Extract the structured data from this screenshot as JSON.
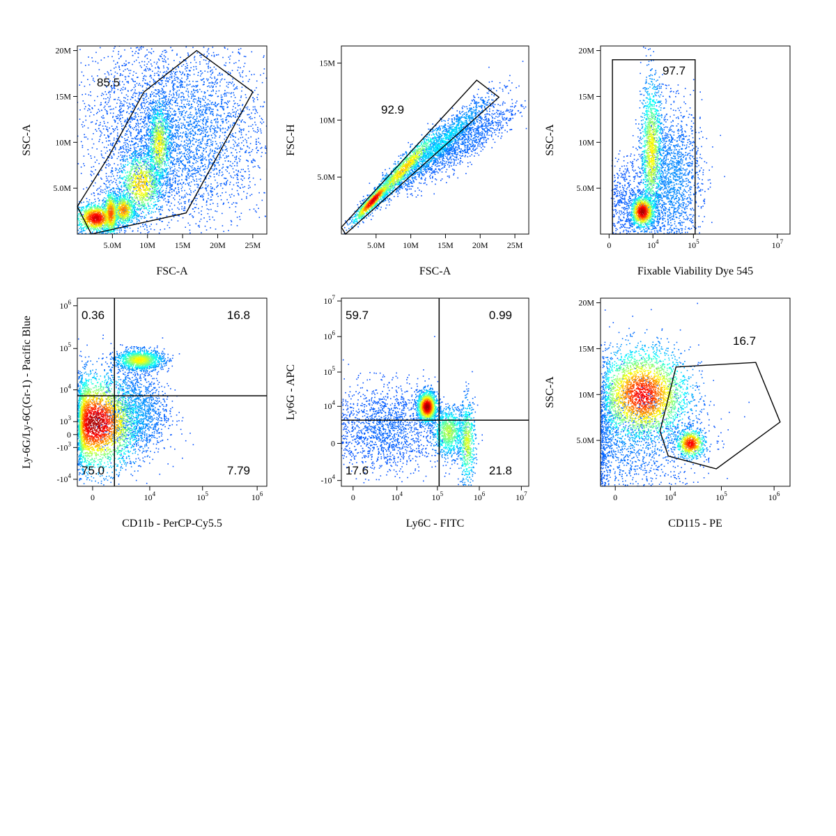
{
  "chart_data": [
    {
      "type": "scatter",
      "title": "",
      "xlabel": "FSC-A",
      "ylabel": "SSC-A",
      "x_scale": "linear",
      "y_scale": "linear",
      "xlim": [
        0,
        27000000
      ],
      "ylim": [
        0,
        20500000
      ],
      "xticks": [
        {
          "v": 5000000,
          "label": "5.0M"
        },
        {
          "v": 10000000,
          "label": "10M"
        },
        {
          "v": 15000000,
          "label": "15M"
        },
        {
          "v": 20000000,
          "label": "20M"
        },
        {
          "v": 25000000,
          "label": "25M"
        }
      ],
      "yticks": [
        {
          "v": 5000000,
          "label": "5.0M"
        },
        {
          "v": 10000000,
          "label": "10M"
        },
        {
          "v": 15000000,
          "label": "15M"
        },
        {
          "v": 20000000,
          "label": "20M"
        }
      ],
      "gates": [
        {
          "shape": "polygon",
          "label": "85.5",
          "points": [
            [
              0,
              3000000
            ],
            [
              4500000,
              8500000
            ],
            [
              9500000,
              15500000
            ],
            [
              17000000,
              20000000
            ],
            [
              25000000,
              15500000
            ],
            [
              15500000,
              2300000
            ],
            [
              2000000,
              0
            ]
          ]
        }
      ],
      "populations": [
        {
          "x": 2600000,
          "y": 1800000,
          "sx": 1500000,
          "sy": 800000,
          "n": 1100,
          "level": 0.9
        },
        {
          "x": 4700000,
          "y": 2300000,
          "sx": 600000,
          "sy": 1300000,
          "n": 700,
          "level": 0.75
        },
        {
          "x": 6500000,
          "y": 2700000,
          "sx": 900000,
          "sy": 900000,
          "n": 600,
          "level": 0.7
        },
        {
          "x": 9000000,
          "y": 5500000,
          "sx": 1700000,
          "sy": 2000000,
          "n": 1000,
          "level": 0.6
        },
        {
          "x": 11600000,
          "y": 9800000,
          "sx": 900000,
          "sy": 2400000,
          "n": 900,
          "level": 0.55
        },
        {
          "x": 15000000,
          "y": 11000000,
          "sx": 6000000,
          "sy": 5000000,
          "n": 3500,
          "level": 0.05
        },
        {
          "x": 8000000,
          "y": 12000000,
          "sx": 4000000,
          "sy": 5000000,
          "n": 700,
          "level": 0.02
        }
      ]
    },
    {
      "type": "scatter",
      "title": "",
      "xlabel": "FSC-A",
      "ylabel": "FSC-H",
      "x_scale": "linear",
      "y_scale": "linear",
      "xlim": [
        0,
        27000000
      ],
      "ylim": [
        0,
        16500000
      ],
      "xticks": [
        {
          "v": 5000000,
          "label": "5.0M"
        },
        {
          "v": 10000000,
          "label": "10M"
        },
        {
          "v": 15000000,
          "label": "15M"
        },
        {
          "v": 20000000,
          "label": "20M"
        },
        {
          "v": 25000000,
          "label": "25M"
        }
      ],
      "yticks": [
        {
          "v": 5000000,
          "label": "5.0M"
        },
        {
          "v": 10000000,
          "label": "10M"
        },
        {
          "v": 15000000,
          "label": "15M"
        }
      ],
      "gates": [
        {
          "shape": "polygon",
          "label": "92.9",
          "points": [
            [
              0,
              600000
            ],
            [
              19500000,
              13500000
            ],
            [
              22700000,
              12000000
            ],
            [
              600000,
              0
            ]
          ]
        }
      ],
      "populations": [
        {
          "x": 4500000,
          "y": 3000000,
          "sx": 1500000,
          "sy": 1000000,
          "n": 900,
          "level": 0.9,
          "diag": 0.62
        },
        {
          "x": 9000000,
          "y": 5800000,
          "sx": 2800000,
          "sy": 1600000,
          "n": 1200,
          "level": 0.6,
          "diag": 0.62
        },
        {
          "x": 14500000,
          "y": 8000000,
          "sx": 3500000,
          "sy": 2000000,
          "n": 1400,
          "level": 0.2,
          "diag": 0.55
        },
        {
          "x": 17500000,
          "y": 8000000,
          "sx": 4000000,
          "sy": 2600000,
          "n": 1000,
          "level": 0.04,
          "diag": 0.4
        }
      ]
    },
    {
      "type": "scatter",
      "title": "",
      "xlabel": "Fixable Viability Dye 545",
      "ylabel": "SSC-A",
      "x_scale": "biexponential",
      "y_scale": "linear",
      "xlim": [
        -600,
        20000000
      ],
      "ylim": [
        0,
        20500000
      ],
      "xticks": [
        {
          "v": 0,
          "label": "0"
        },
        {
          "v": 10000,
          "label": "10^4"
        },
        {
          "v": 100000,
          "label": "10^5"
        },
        {
          "v": 10000000,
          "label": "10^7"
        }
      ],
      "yticks": [
        {
          "v": 5000000,
          "label": "5.0M"
        },
        {
          "v": 10000000,
          "label": "10M"
        },
        {
          "v": 15000000,
          "label": "15M"
        },
        {
          "v": 20000000,
          "label": "20M"
        }
      ],
      "gates": [
        {
          "shape": "rectangle",
          "label": "97.7",
          "x": [
            200,
            110000
          ],
          "y": [
            0,
            19000000
          ]
        }
      ],
      "populations": [
        {
          "x": 5000,
          "y": 2500000,
          "sx": 0.18,
          "sy": 900000,
          "n": 1000,
          "level": 0.95,
          "logx": true
        },
        {
          "x": 9000,
          "y": 9000000,
          "sx": 0.15,
          "sy": 4000000,
          "n": 1300,
          "level": 0.55,
          "logx": true
        },
        {
          "x": 30000,
          "y": 6000000,
          "sx": 0.35,
          "sy": 4000000,
          "n": 1600,
          "level": 0.08,
          "logx": true
        },
        {
          "x": 1500,
          "y": 3500000,
          "sx": 0.4,
          "sy": 2500000,
          "n": 500,
          "level": 0.02,
          "logx": true
        }
      ]
    },
    {
      "type": "scatter",
      "title": "",
      "xlabel": "CD11b - PerCP-Cy5.5",
      "ylabel": "Ly-6G/Ly-6C(Gr-1) - Pacific Blue",
      "x_scale": "biexponential",
      "y_scale": "biexponential",
      "xlim": [
        -900,
        1500000
      ],
      "ylim": [
        -15000,
        1500000
      ],
      "xticks": [
        {
          "v": 0,
          "label": "0"
        },
        {
          "v": 10000,
          "label": "10^4"
        },
        {
          "v": 100000,
          "label": "10^5"
        },
        {
          "v": 1000000,
          "label": "10^6"
        }
      ],
      "yticks": [
        {
          "v": -10000,
          "label": "-10^4"
        },
        {
          "v": -1000,
          "label": "-10^3"
        },
        {
          "v": 0,
          "label": "0"
        },
        {
          "v": 1000,
          "label": "10^3"
        },
        {
          "v": 10000,
          "label": "10^4"
        },
        {
          "v": 100000,
          "label": "10^5"
        },
        {
          "v": 1000000,
          "label": "10^6"
        }
      ],
      "gates": [
        {
          "shape": "quadrant",
          "x": 1500,
          "y": 7000,
          "labels": {
            "top_left": "0.36",
            "top_right": "16.8",
            "bottom_left": "75.0",
            "bottom_right": "7.79"
          }
        }
      ],
      "populations": [
        {
          "x": 60,
          "y": 900,
          "sx": 0.42,
          "sy": 0.55,
          "n": 3200,
          "level": 0.95
        },
        {
          "x": 6000,
          "y": 55000,
          "sx": 0.22,
          "sy": 0.12,
          "n": 1300,
          "level": 0.55
        },
        {
          "x": 5000,
          "y": 2500,
          "sx": 0.3,
          "sy": 0.5,
          "n": 1300,
          "level": 0.1
        }
      ]
    },
    {
      "type": "scatter",
      "title": "",
      "xlabel": "Ly6C - FITC",
      "ylabel": "Ly6G - APC",
      "x_scale": "biexponential",
      "y_scale": "biexponential",
      "xlim": [
        -900,
        15000000
      ],
      "ylim": [
        -15000,
        12000000
      ],
      "xticks": [
        {
          "v": 0,
          "label": "0"
        },
        {
          "v": 10000,
          "label": "10^4"
        },
        {
          "v": 100000,
          "label": "10^5"
        },
        {
          "v": 1000000,
          "label": "10^6"
        },
        {
          "v": 10000000,
          "label": "10^7"
        }
      ],
      "yticks": [
        {
          "v": -10000,
          "label": "-10^4"
        },
        {
          "v": 0,
          "label": "0"
        },
        {
          "v": 10000,
          "label": "10^4"
        },
        {
          "v": 100000,
          "label": "10^5"
        },
        {
          "v": 1000000,
          "label": "10^6"
        },
        {
          "v": 10000000,
          "label": "10^7"
        }
      ],
      "gates": [
        {
          "shape": "quadrant",
          "x": 110000,
          "y": 3500,
          "labels": {
            "top_left": "59.7",
            "top_right": "0.99",
            "bottom_left": "17.6",
            "bottom_right": "21.8"
          }
        }
      ],
      "populations": [
        {
          "x": 55000,
          "y": 10000,
          "sx": 0.12,
          "sy": 0.22,
          "n": 1300,
          "level": 0.97
        },
        {
          "x": 180000,
          "y": 1200,
          "sx": 0.2,
          "sy": 0.35,
          "n": 900,
          "level": 0.45
        },
        {
          "x": 500000,
          "y": 120,
          "sx": 0.1,
          "sy": 0.6,
          "n": 600,
          "level": 0.5
        },
        {
          "x": 5000,
          "y": 1800,
          "sx": 0.6,
          "sy": 0.6,
          "n": 1500,
          "level": 0.03
        }
      ]
    },
    {
      "type": "scatter",
      "title": "",
      "xlabel": "CD115 - PE",
      "ylabel": "SSC-A",
      "x_scale": "biexponential",
      "y_scale": "linear",
      "xlim": [
        -900,
        2000000
      ],
      "ylim": [
        0,
        20500000
      ],
      "xticks": [
        {
          "v": 0,
          "label": "0"
        },
        {
          "v": 10000,
          "label": "10^4"
        },
        {
          "v": 100000,
          "label": "10^5"
        },
        {
          "v": 1000000,
          "label": "10^6"
        }
      ],
      "yticks": [
        {
          "v": 5000000,
          "label": "5.0M"
        },
        {
          "v": 10000000,
          "label": "10M"
        },
        {
          "v": 15000000,
          "label": "15M"
        },
        {
          "v": 20000000,
          "label": "20M"
        }
      ],
      "gates": [
        {
          "shape": "polygon",
          "label": "16.7",
          "points": [
            [
              9000,
              3300000
            ],
            [
              6000,
              6000000
            ],
            [
              13000,
              13000000
            ],
            [
              450000,
              13500000
            ],
            [
              1300000,
              7000000
            ],
            [
              80000,
              1900000
            ]
          ]
        }
      ],
      "populations": [
        {
          "x": 2200,
          "y": 10000000,
          "sx": 0.45,
          "sy": 2600000,
          "n": 3000,
          "level": 0.85
        },
        {
          "x": 25000,
          "y": 4700000,
          "sx": 0.14,
          "sy": 800000,
          "n": 700,
          "level": 0.85
        },
        {
          "x": 600,
          "y": 5000000,
          "sx": 0.7,
          "sy": 3500000,
          "n": 1400,
          "level": 0.05
        }
      ]
    }
  ]
}
